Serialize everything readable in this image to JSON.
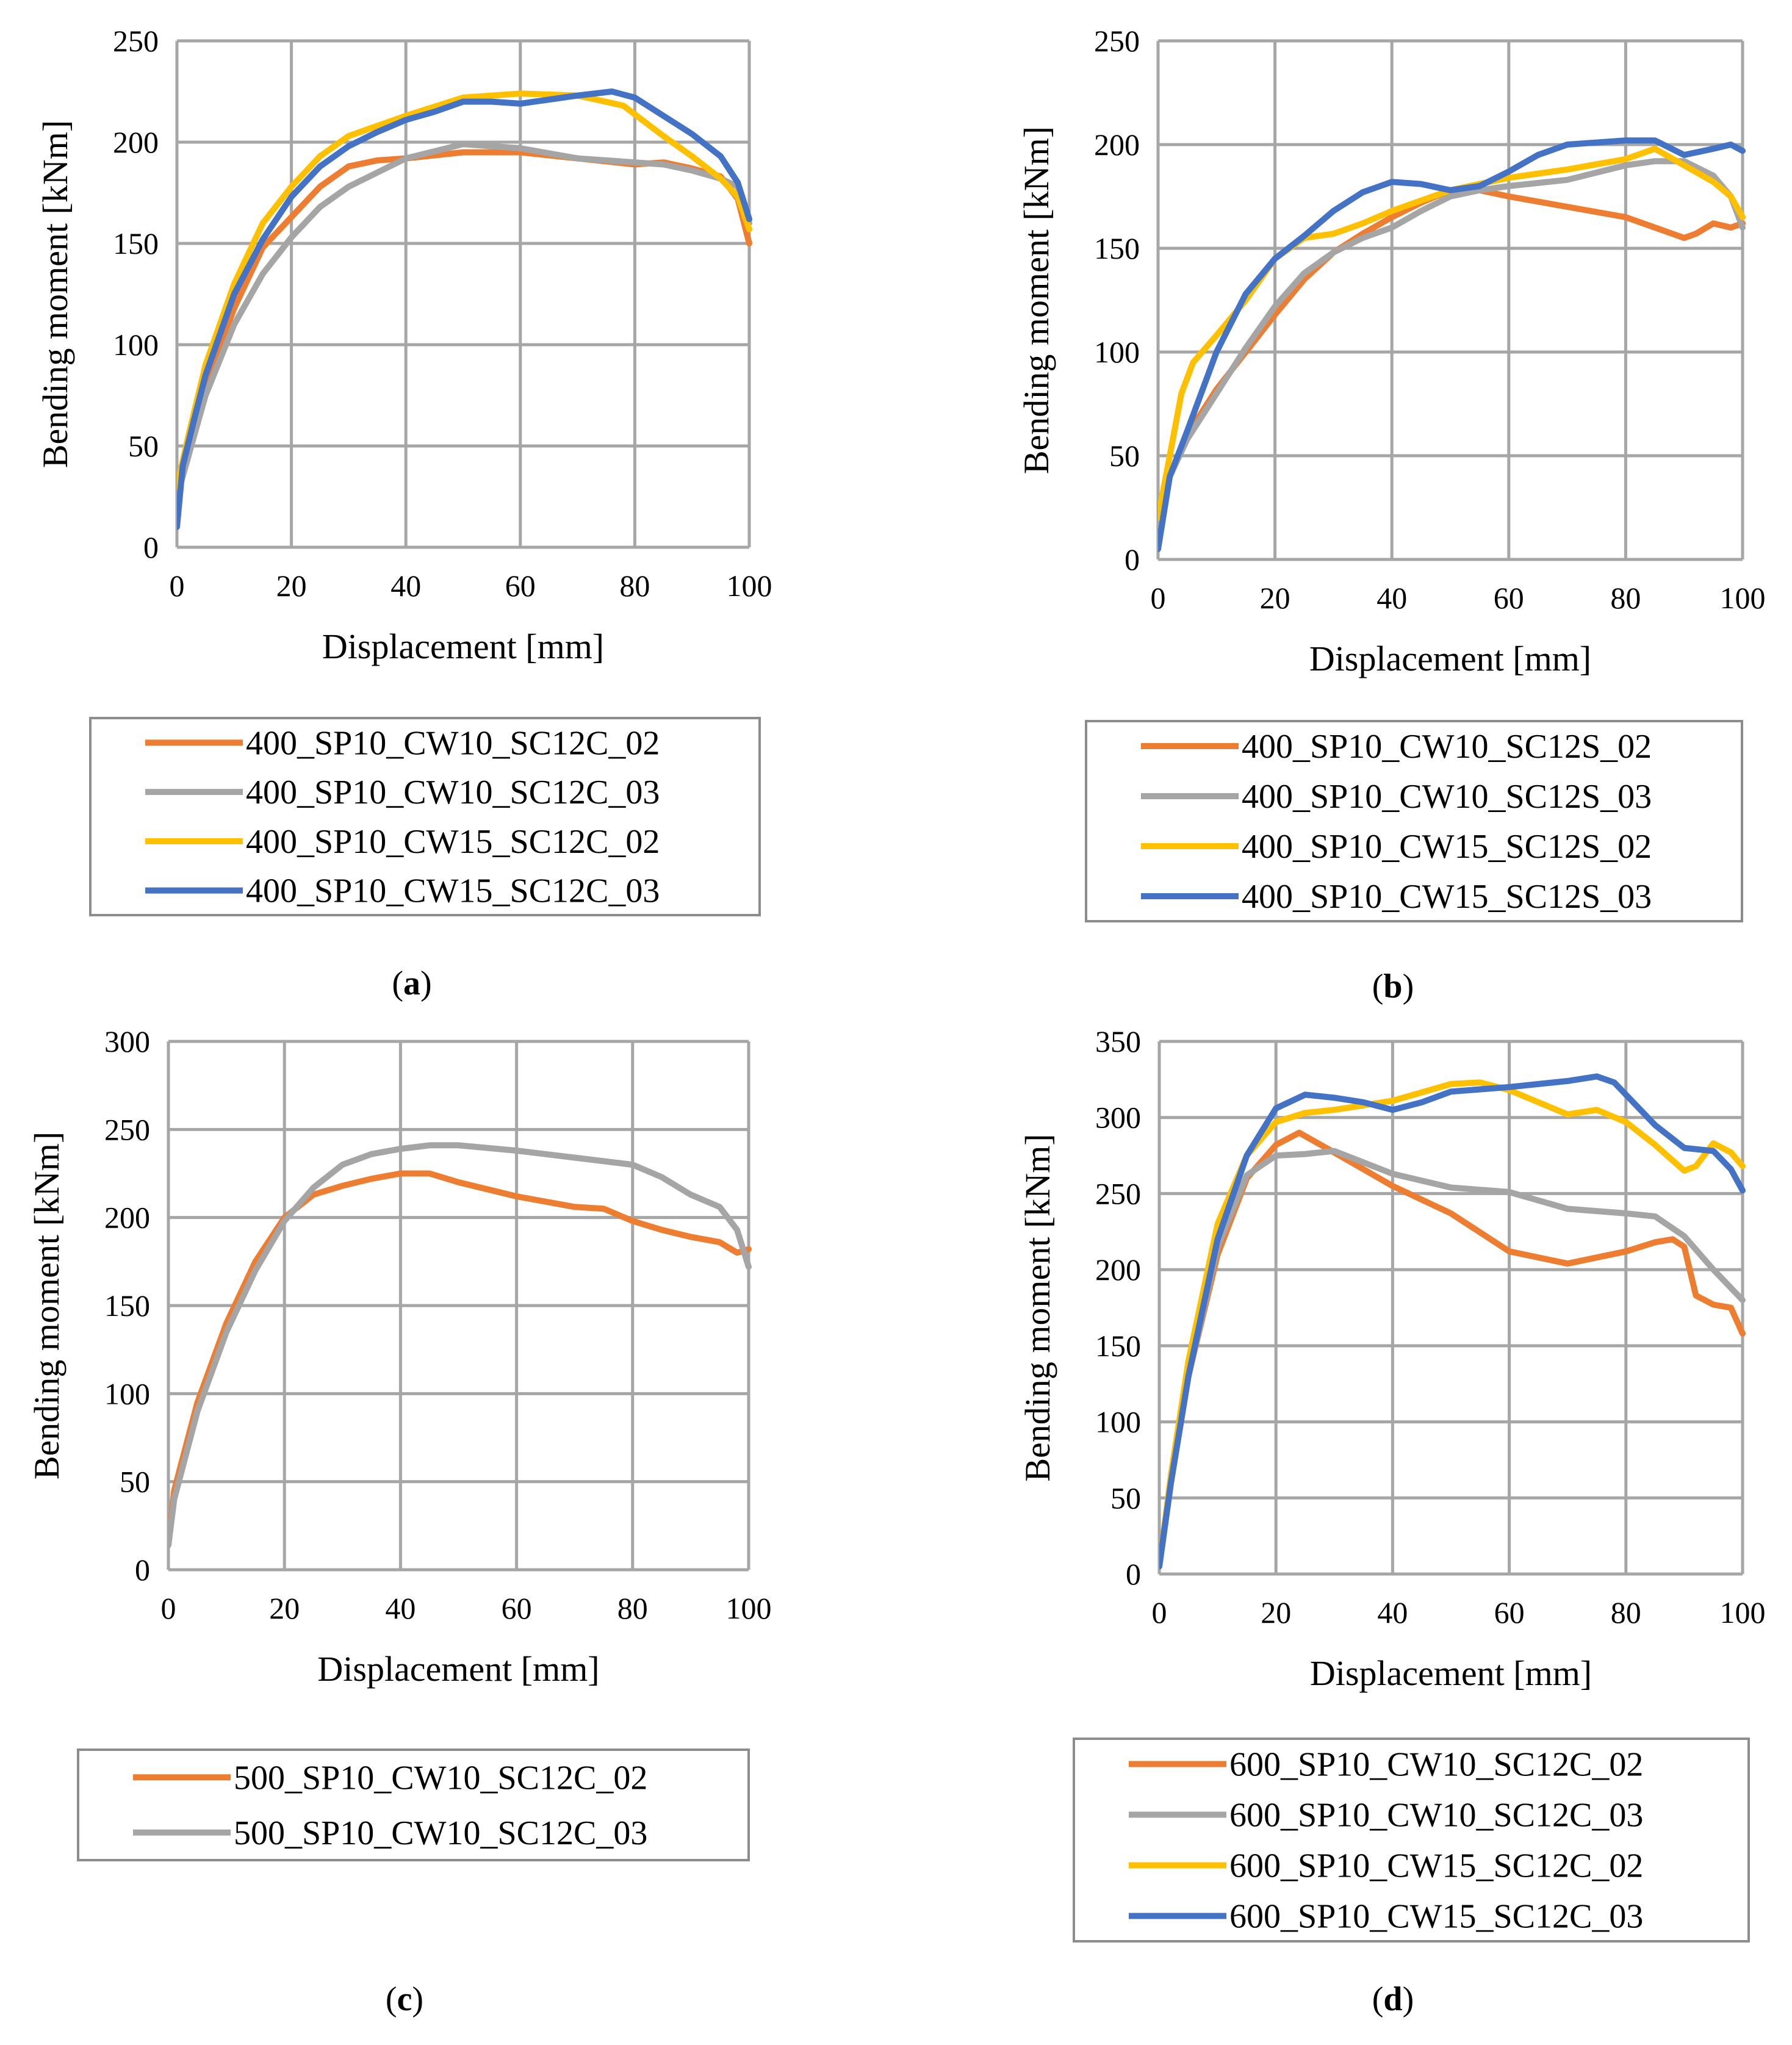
{
  "colors": {
    "orange": "#ED7D31",
    "gray": "#A5A5A5",
    "yellow": "#FFC000",
    "blue": "#4472C4",
    "grid": "#A6A6A6",
    "frame": "#8C8C8C"
  },
  "chart_data": [
    {
      "id": "a",
      "type": "line",
      "caption": "(a)",
      "caption_letter": "a",
      "xlabel": "Displacement [mm]",
      "ylabel": "Bending moment [kNm]",
      "xlim": [
        0,
        100
      ],
      "ylim": [
        0,
        250
      ],
      "xticks": [
        0,
        20,
        40,
        60,
        80,
        100
      ],
      "yticks": [
        0,
        50,
        100,
        150,
        200,
        250
      ],
      "grid": true,
      "legend_position": "bottom",
      "series": [
        {
          "name": "400_SP10_CW10_SC12C_02",
          "color": "#ED7D31",
          "x": [
            0,
            2,
            5,
            10,
            15,
            20,
            25,
            30,
            35,
            40,
            50,
            60,
            70,
            80,
            85,
            90,
            95,
            98,
            100
          ],
          "y": [
            25,
            45,
            80,
            118,
            148,
            163,
            178,
            188,
            191,
            192,
            195,
            195,
            192,
            189,
            190,
            187,
            183,
            172,
            150
          ]
        },
        {
          "name": "400_SP10_CW10_SC12C_03",
          "color": "#A5A5A5",
          "x": [
            0,
            2,
            5,
            10,
            15,
            20,
            25,
            30,
            35,
            40,
            50,
            60,
            70,
            80,
            85,
            90,
            95,
            98,
            100
          ],
          "y": [
            25,
            45,
            75,
            110,
            135,
            153,
            168,
            178,
            185,
            192,
            199,
            197,
            192,
            190,
            189,
            186,
            182,
            178,
            160
          ]
        },
        {
          "name": "400_SP10_CW15_SC12C_02",
          "color": "#FFC000",
          "x": [
            0,
            2,
            5,
            10,
            15,
            20,
            25,
            30,
            35,
            40,
            50,
            60,
            70,
            78,
            85,
            90,
            95,
            98,
            100
          ],
          "y": [
            30,
            55,
            90,
            130,
            160,
            178,
            193,
            203,
            208,
            213,
            222,
            224,
            223,
            218,
            203,
            193,
            182,
            173,
            157
          ]
        },
        {
          "name": "400_SP10_CW15_SC12C_03",
          "color": "#4472C4",
          "x": [
            0,
            1,
            3,
            5,
            10,
            15,
            20,
            25,
            30,
            35,
            40,
            45,
            50,
            55,
            60,
            70,
            76,
            80,
            85,
            90,
            95,
            98,
            100
          ],
          "y": [
            10,
            40,
            63,
            85,
            125,
            152,
            173,
            188,
            198,
            205,
            211,
            215,
            220,
            220,
            219,
            223,
            225,
            222,
            213,
            204,
            193,
            180,
            162
          ]
        }
      ]
    },
    {
      "id": "b",
      "type": "line",
      "caption": "(b)",
      "caption_letter": "b",
      "xlabel": "Displacement [mm]",
      "ylabel": "Bending moment [kNm]",
      "xlim": [
        0,
        100
      ],
      "ylim": [
        0,
        250
      ],
      "xticks": [
        0,
        20,
        40,
        60,
        80,
        100
      ],
      "yticks": [
        0,
        50,
        100,
        150,
        200,
        250
      ],
      "grid": true,
      "legend_position": "bottom",
      "series": [
        {
          "name": "400_SP10_CW10_SC12S_02",
          "color": "#ED7D31",
          "x": [
            0,
            2,
            5,
            10,
            15,
            20,
            25,
            30,
            35,
            40,
            45,
            50,
            55,
            60,
            70,
            80,
            85,
            88,
            90,
            92,
            95,
            98,
            100
          ],
          "y": [
            15,
            40,
            60,
            82,
            100,
            118,
            135,
            148,
            157,
            165,
            172,
            178,
            178,
            175,
            170,
            165,
            160,
            157,
            155,
            157,
            162,
            160,
            162
          ]
        },
        {
          "name": "400_SP10_CW10_SC12S_03",
          "color": "#A5A5A5",
          "x": [
            0,
            2,
            5,
            10,
            15,
            20,
            25,
            30,
            35,
            40,
            45,
            50,
            55,
            60,
            70,
            80,
            85,
            90,
            95,
            98,
            100
          ],
          "y": [
            15,
            40,
            58,
            80,
            102,
            122,
            138,
            148,
            155,
            160,
            168,
            175,
            178,
            180,
            183,
            190,
            192,
            192,
            185,
            175,
            160
          ]
        },
        {
          "name": "400_SP10_CW15_SC12S_02",
          "color": "#FFC000",
          "x": [
            0,
            2,
            4,
            6,
            10,
            15,
            20,
            25,
            30,
            35,
            40,
            50,
            60,
            70,
            80,
            85,
            90,
            95,
            98,
            100
          ],
          "y": [
            20,
            50,
            80,
            95,
            108,
            125,
            145,
            155,
            157,
            162,
            168,
            178,
            184,
            188,
            193,
            198,
            190,
            182,
            175,
            165
          ]
        },
        {
          "name": "400_SP10_CW15_SC12S_03",
          "color": "#4472C4",
          "x": [
            0,
            2,
            5,
            10,
            15,
            20,
            25,
            30,
            35,
            40,
            45,
            50,
            55,
            60,
            65,
            70,
            80,
            85,
            90,
            95,
            98,
            100
          ],
          "y": [
            5,
            40,
            62,
            100,
            128,
            145,
            156,
            168,
            177,
            182,
            181,
            178,
            180,
            187,
            195,
            200,
            202,
            202,
            195,
            198,
            200,
            197
          ]
        }
      ]
    },
    {
      "id": "c",
      "type": "line",
      "caption": "(c)",
      "caption_letter": "c",
      "xlabel": "Displacement [mm]",
      "ylabel": "Bending moment [kNm]",
      "xlim": [
        0,
        100
      ],
      "ylim": [
        0,
        300
      ],
      "xticks": [
        0,
        20,
        40,
        60,
        80,
        100
      ],
      "yticks": [
        0,
        50,
        100,
        150,
        200,
        250,
        300
      ],
      "grid": true,
      "legend_position": "bottom",
      "series": [
        {
          "name": "500_SP10_CW10_SC12C_02",
          "color": "#ED7D31",
          "x": [
            0,
            1,
            3,
            5,
            10,
            15,
            20,
            25,
            30,
            35,
            40,
            45,
            50,
            60,
            70,
            75,
            80,
            85,
            90,
            95,
            98,
            100
          ],
          "y": [
            14,
            45,
            70,
            95,
            140,
            175,
            200,
            213,
            218,
            222,
            225,
            225,
            220,
            212,
            206,
            205,
            198,
            193,
            189,
            186,
            180,
            182
          ]
        },
        {
          "name": "500_SP10_CW10_SC12C_03",
          "color": "#A5A5A5",
          "x": [
            0,
            1,
            3,
            5,
            10,
            15,
            20,
            25,
            30,
            35,
            40,
            45,
            50,
            60,
            70,
            80,
            85,
            90,
            95,
            98,
            100
          ],
          "y": [
            14,
            40,
            65,
            90,
            135,
            170,
            198,
            217,
            230,
            236,
            239,
            241,
            241,
            238,
            234,
            230,
            223,
            213,
            206,
            193,
            172
          ]
        }
      ]
    },
    {
      "id": "d",
      "type": "line",
      "caption": "(d)",
      "caption_letter": "d",
      "xlabel": "Displacement [mm]",
      "ylabel": "Bending moment [kNm]",
      "xlim": [
        0,
        100
      ],
      "ylim": [
        0,
        350
      ],
      "xticks": [
        0,
        20,
        40,
        60,
        80,
        100
      ],
      "yticks": [
        0,
        50,
        100,
        150,
        200,
        250,
        300,
        350
      ],
      "grid": true,
      "legend_position": "bottom",
      "series": [
        {
          "name": "600_SP10_CW10_SC12C_02",
          "color": "#ED7D31",
          "x": [
            0,
            2,
            5,
            10,
            15,
            20,
            24,
            30,
            40,
            50,
            60,
            70,
            80,
            85,
            88,
            90,
            92,
            95,
            98,
            100
          ],
          "y": [
            5,
            60,
            130,
            210,
            260,
            282,
            290,
            277,
            255,
            237,
            212,
            204,
            212,
            218,
            220,
            215,
            183,
            177,
            175,
            158
          ]
        },
        {
          "name": "600_SP10_CW10_SC12C_03",
          "color": "#A5A5A5",
          "x": [
            0,
            2,
            5,
            10,
            15,
            20,
            25,
            30,
            40,
            50,
            60,
            70,
            80,
            85,
            90,
            95,
            100
          ],
          "y": [
            5,
            60,
            130,
            215,
            262,
            275,
            276,
            278,
            263,
            254,
            251,
            240,
            237,
            235,
            222,
            200,
            180
          ]
        },
        {
          "name": "600_SP10_CW15_SC12C_02",
          "color": "#FFC000",
          "x": [
            0,
            2,
            5,
            10,
            15,
            20,
            25,
            30,
            40,
            50,
            55,
            60,
            65,
            70,
            75,
            80,
            85,
            90,
            92,
            95,
            98,
            100
          ],
          "y": [
            5,
            65,
            140,
            230,
            275,
            297,
            303,
            305,
            311,
            322,
            323,
            318,
            310,
            302,
            305,
            297,
            282,
            265,
            268,
            283,
            277,
            268
          ]
        },
        {
          "name": "600_SP10_CW15_SC12C_03",
          "color": "#4472C4",
          "x": [
            0,
            2,
            5,
            10,
            15,
            20,
            25,
            30,
            35,
            40,
            45,
            50,
            60,
            70,
            75,
            78,
            85,
            90,
            95,
            98,
            100
          ],
          "y": [
            5,
            60,
            130,
            220,
            275,
            306,
            315,
            313,
            310,
            305,
            310,
            317,
            320,
            324,
            327,
            323,
            295,
            280,
            278,
            266,
            252
          ]
        }
      ]
    }
  ]
}
